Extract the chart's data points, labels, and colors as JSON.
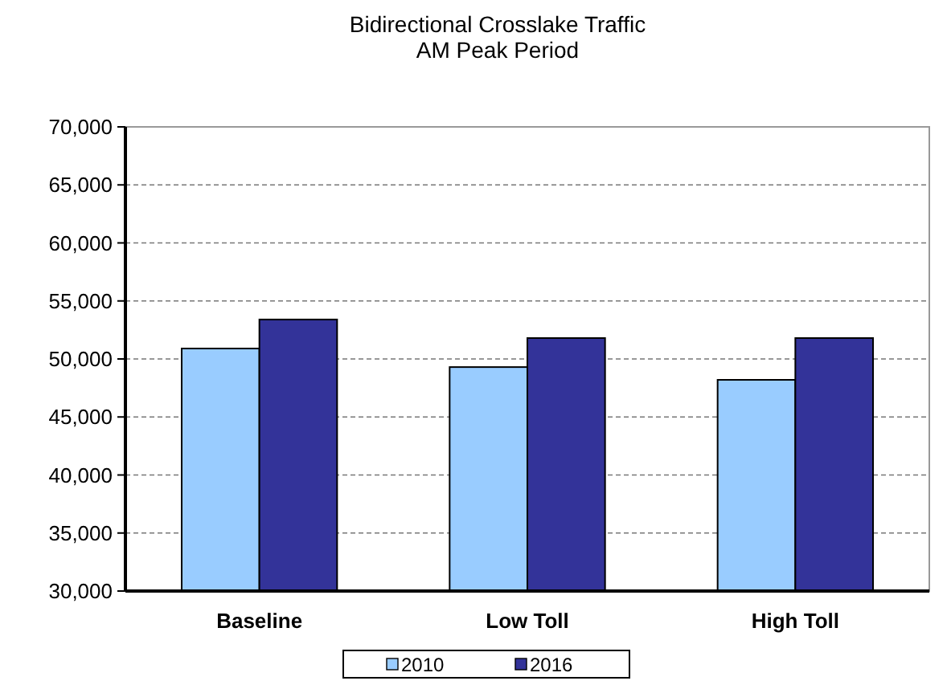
{
  "chart_data": {
    "type": "bar",
    "title": "Bidirectional Crosslake Traffic\nAM Peak Period",
    "categories": [
      "Baseline",
      "Low Toll",
      "High Toll"
    ],
    "series": [
      {
        "name": "2010",
        "color": "#99ccff",
        "values": [
          50900,
          49300,
          48200
        ]
      },
      {
        "name": "2016",
        "color": "#333399",
        "values": [
          53400,
          51800,
          51800
        ]
      }
    ],
    "ylim": [
      30000,
      70000
    ],
    "yticks": [
      {
        "value": 30000,
        "label": "30,000"
      },
      {
        "value": 35000,
        "label": "35,000"
      },
      {
        "value": 40000,
        "label": "40,000"
      },
      {
        "value": 45000,
        "label": "45,000"
      },
      {
        "value": 50000,
        "label": "50,000"
      },
      {
        "value": 55000,
        "label": "55,000"
      },
      {
        "value": 60000,
        "label": "60,000"
      },
      {
        "value": 65000,
        "label": "65,000"
      },
      {
        "value": 70000,
        "label": "70,000"
      }
    ],
    "grid": "y",
    "legend": "bottom"
  }
}
